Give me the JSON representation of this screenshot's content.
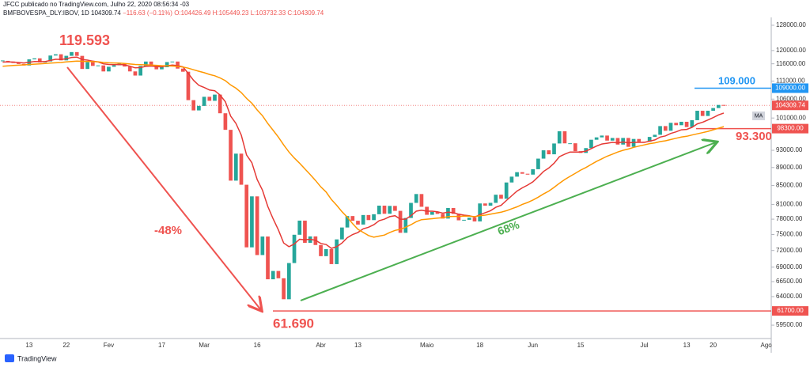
{
  "header": {
    "author_line": "JFCC publicado no TradingView.com, Julho 22, 2020 08:56:34 -03",
    "symbol": "BMFBOVESPA_DLY:IBOV, 1D",
    "last": "104309.74",
    "change": "−116.63 (−0.11%)",
    "ohlc": "O:104426.49 H:105449.23 L:103732.33 C:104309.74"
  },
  "footer": "TradingView",
  "indicator_badge": "MA",
  "chart_data": {
    "type": "candlestick",
    "log_scale": true,
    "grid": false,
    "up_color": "#26a69a",
    "down_color": "#ef5350",
    "categories": [
      null,
      null,
      null,
      null,
      null,
      "13",
      null,
      null,
      null,
      null,
      null,
      null,
      "22",
      null,
      null,
      null,
      null,
      null,
      null,
      null,
      "Fev",
      null,
      null,
      null,
      null,
      null,
      null,
      null,
      null,
      null,
      "17",
      null,
      null,
      null,
      null,
      null,
      null,
      null,
      "Mar",
      null,
      null,
      null,
      null,
      null,
      null,
      null,
      null,
      null,
      "16",
      null,
      null,
      null,
      null,
      null,
      null,
      null,
      null,
      null,
      null,
      null,
      "Abr",
      null,
      null,
      null,
      null,
      null,
      null,
      "13",
      null,
      null,
      null,
      null,
      null,
      null,
      null,
      null,
      null,
      null,
      null,
      null,
      "Maio",
      null,
      null,
      null,
      null,
      null,
      null,
      null,
      null,
      null,
      "18",
      null,
      null,
      null,
      null,
      null,
      null,
      null,
      null,
      null,
      "Jun",
      null,
      null,
      null,
      null,
      null,
      null,
      null,
      null,
      "15",
      null,
      null,
      null,
      null,
      null,
      null,
      null,
      null,
      null,
      null,
      null,
      "Jul",
      null,
      null,
      null,
      null,
      null,
      null,
      null,
      "13",
      null,
      null,
      null,
      null,
      "20",
      null,
      null,
      null,
      null,
      null,
      null,
      null,
      null,
      null,
      "Ago"
    ],
    "values": [
      116878,
      116662,
      116247,
      115947,
      115503,
      117325,
      117632,
      116414,
      116704,
      118478,
      118862,
      117026,
      118391,
      119528,
      118376,
      114482,
      116479,
      115385,
      115528,
      113761,
      115127,
      115557,
      116028,
      115190,
      113770,
      112570,
      115371,
      116674,
      115662,
      114381,
      114990,
      116518,
      116674,
      114586,
      113681,
      105718,
      102984,
      104172,
      106625,
      105537,
      107224,
      102233,
      97997,
      86067,
      92214,
      85171,
      72583,
      82677,
      71168,
      74617,
      66895,
      68332,
      67069,
      63570,
      69729,
      74955,
      77710,
      73429,
      74640,
      73020,
      70967,
      72253,
      69538,
      74073,
      76358,
      78625,
      77682,
      76935,
      78831,
      77812,
      78990,
      80742,
      79085,
      80687,
      79673,
      75331,
      78239,
      81312,
      83171,
      80506,
      78876,
      79471,
      79063,
      78119,
      80263,
      79065,
      77772,
      77871,
      78292,
      77556,
      81194,
      80742,
      81319,
      83027,
      82173,
      85663,
      86949,
      87946,
      87594,
      87403,
      88620,
      91046,
      93002,
      92059,
      94637,
      97645,
      94671,
      94686,
      92795,
      92376,
      93531,
      95547,
      96125,
      96572,
      95336,
      95975,
      94377,
      95983,
      93835,
      95735,
      95056,
      95055,
      96235,
      96765,
      98937,
      97761,
      99770,
      99160,
      100032,
      98697,
      100440,
      102888,
      101526,
      102888,
      103600,
      104426.49,
      104309.74,
      null,
      null,
      null,
      null,
      null,
      null,
      null,
      null
    ],
    "series": [
      {
        "color": "#e53935",
        "values": [
          116500,
          116550,
          116500,
          116400,
          116250,
          116450,
          116700,
          116650,
          116650,
          117000,
          117350,
          117300,
          117500,
          117900,
          118000,
          117300,
          117100,
          116800,
          116550,
          116000,
          115800,
          115750,
          115800,
          115700,
          115300,
          114800,
          114900,
          115250,
          115350,
          115150,
          115100,
          115400,
          115650,
          115450,
          115100,
          113200,
          111200,
          109800,
          109200,
          108500,
          108300,
          107100,
          105300,
          101500,
          99600,
          96700,
          91900,
          90100,
          86300,
          84000,
          80600,
          78100,
          75900,
          73400,
          72700,
          73200,
          74100,
          74000,
          74100,
          73900,
          73300,
          73100,
          72400,
          72700,
          73400,
          74400,
          75000,
          75400,
          76100,
          76400,
          76900,
          77700,
          78000,
          78500,
          78700,
          78000,
          78000,
          78700,
          79600,
          79800,
          79600,
          79600,
          79500,
          79200,
          79400,
          79300,
          79000,
          78800,
          78700,
          78400,
          78900,
          79300,
          79700,
          80400,
          80800,
          81800,
          82800,
          83800,
          84500,
          85100,
          85800,
          86900,
          88100,
          88900,
          90000,
          91500,
          92100,
          92600,
          92600,
          92600,
          92800,
          93400,
          94000,
          94500,
          94700,
          94900,
          94800,
          95000,
          94800,
          94900,
          94900,
          94900,
          95200,
          95500,
          96200,
          96500,
          97100,
          97500,
          98000,
          98100,
          98600,
          99500,
          99900,
          100500,
          101100,
          101800,
          102300,
          null,
          null,
          null,
          null,
          null,
          null,
          null,
          null
        ]
      },
      {
        "color": "#ff9800",
        "values": [
          115300,
          115400,
          115500,
          115600,
          115700,
          115800,
          115900,
          116000,
          116100,
          116200,
          116300,
          116400,
          116550,
          116700,
          116800,
          116750,
          116700,
          116650,
          116600,
          116400,
          116300,
          116250,
          116200,
          116100,
          115950,
          115800,
          115750,
          115700,
          115650,
          115550,
          115450,
          115400,
          115350,
          115250,
          115050,
          114700,
          114250,
          113800,
          113400,
          112900,
          112500,
          111900,
          111100,
          109900,
          109000,
          107800,
          106200,
          104900,
          103100,
          101600,
          99600,
          97900,
          96200,
          94300,
          92600,
          91200,
          90000,
          88700,
          87400,
          86100,
          84700,
          83600,
          82000,
          80800,
          79500,
          78400,
          77100,
          76000,
          75400,
          74800,
          74500,
          74700,
          74900,
          75400,
          75800,
          76000,
          76400,
          76900,
          77500,
          77900,
          78000,
          78100,
          78200,
          78300,
          78500,
          78550,
          78550,
          78600,
          78600,
          78500,
          78700,
          78800,
          79000,
          79200,
          79400,
          79700,
          80100,
          80500,
          81000,
          81400,
          81900,
          82500,
          83200,
          83800,
          84600,
          85500,
          86300,
          87000,
          87700,
          88400,
          89000,
          89700,
          90400,
          91000,
          91600,
          92100,
          92600,
          93000,
          93300,
          93700,
          94000,
          94300,
          94600,
          94800,
          95100,
          95300,
          95600,
          95900,
          96200,
          96400,
          96700,
          97000,
          97300,
          97600,
          98000,
          98400,
          98800,
          null,
          null,
          null,
          null,
          null,
          null,
          null,
          null
        ]
      }
    ],
    "ylim": [
      57500,
      130600
    ],
    "yticks": [
      {
        "value": 128000,
        "label": "128000.00"
      },
      {
        "value": 120000,
        "label": "120000.00"
      },
      {
        "value": 116000,
        "label": "116000.00"
      },
      {
        "value": 111000,
        "label": "111000.00"
      },
      {
        "value": 106000,
        "label": "106000.00"
      },
      {
        "value": 101000,
        "label": "101000.00"
      },
      {
        "value": 93000,
        "label": "93000.00"
      },
      {
        "value": 89000,
        "label": "89000.00"
      },
      {
        "value": 85000,
        "label": "85000.00"
      },
      {
        "value": 81000,
        "label": "81000.00"
      },
      {
        "value": 78000,
        "label": "78000.00"
      },
      {
        "value": 75000,
        "label": "75000.00"
      },
      {
        "value": 72000,
        "label": "72000.00"
      },
      {
        "value": 69000,
        "label": "69000.00"
      },
      {
        "value": 66500,
        "label": "66500.00"
      },
      {
        "value": 64000,
        "label": "64000.00"
      },
      {
        "value": 59500,
        "label": "59500.00"
      }
    ],
    "hlines": [
      {
        "value": 109000,
        "label": "109000.00",
        "color": "#2196f3"
      },
      {
        "value": 104309.74,
        "label": "104309.74",
        "color": "#ef5350",
        "dotted": true
      },
      {
        "value": 98300,
        "label": "98300.00",
        "color": "#ef5350"
      },
      {
        "value": 61700,
        "label": "61700.00",
        "color": "#ef5350"
      }
    ],
    "annotations": [
      {
        "text": "119.593",
        "color": "#ef5350"
      },
      {
        "text": "61.690",
        "color": "#ef5350"
      },
      {
        "text": "-48%",
        "color": "#ef5350"
      },
      {
        "text": "68%",
        "color": "#4caf50"
      },
      {
        "text": "93.300",
        "color": "#ef5350"
      },
      {
        "text": "109.000",
        "color": "#2196f3"
      }
    ]
  }
}
